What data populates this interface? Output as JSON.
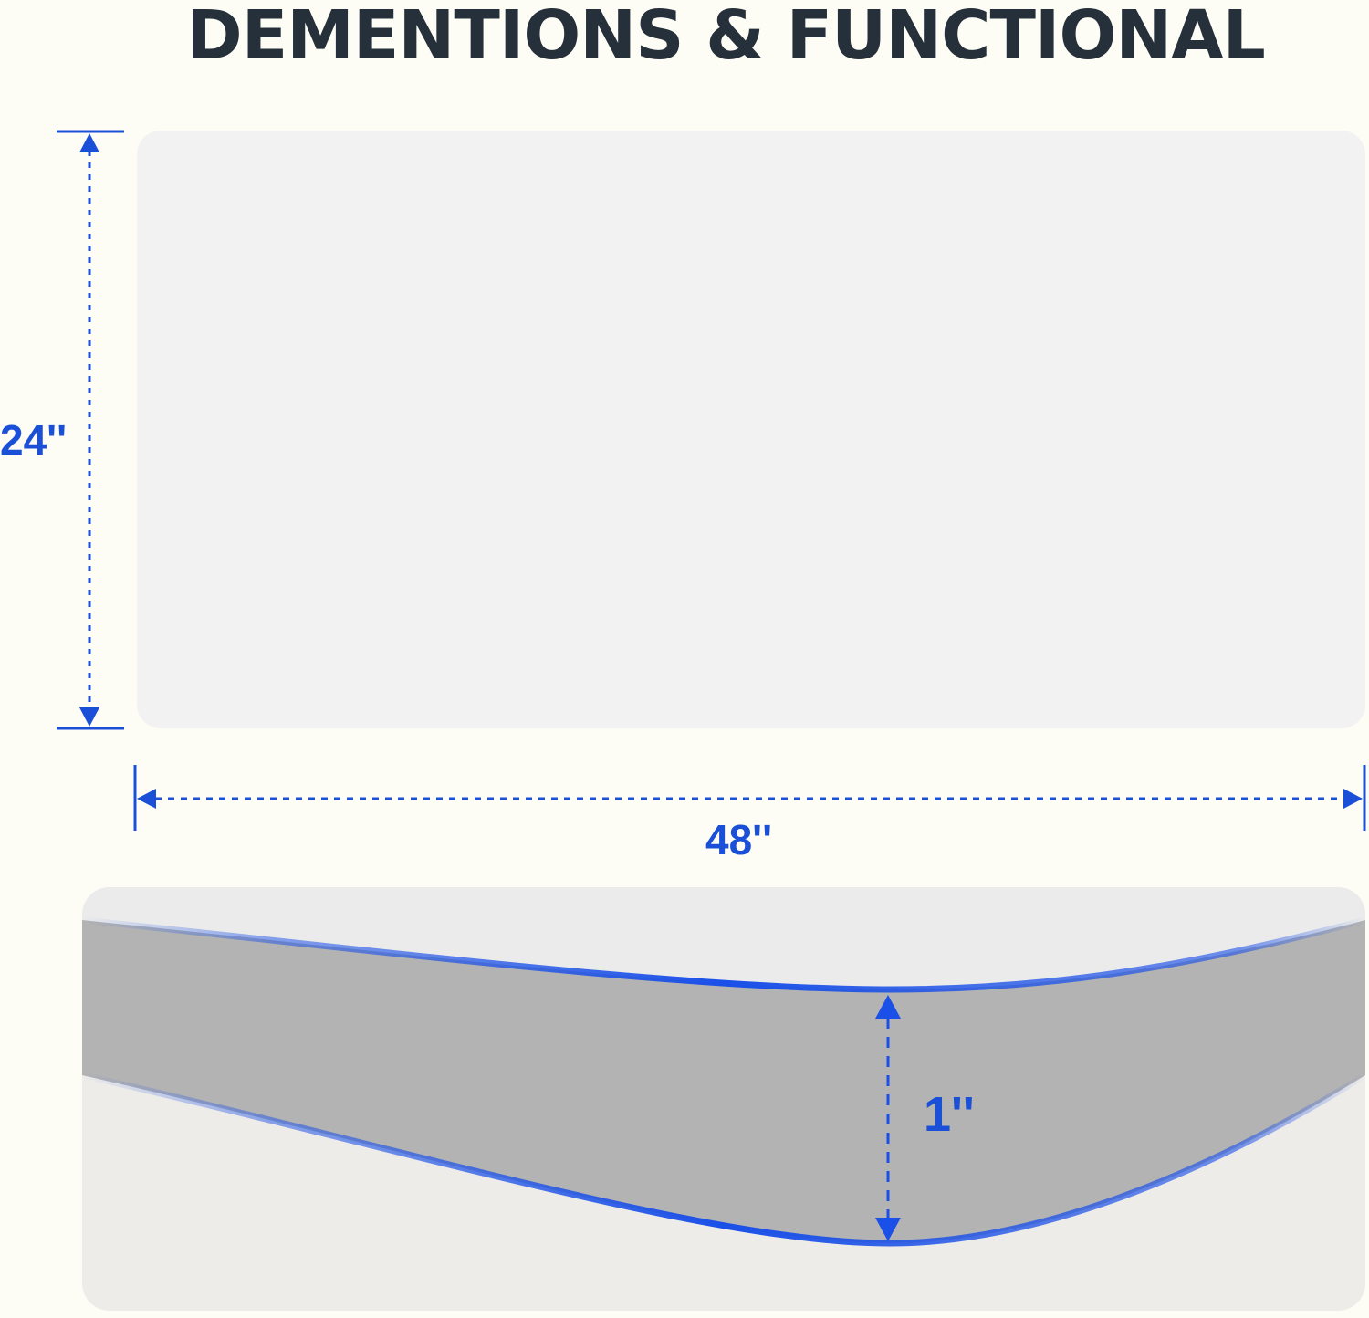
{
  "title": "DEMENTIONS & FUNCTIONAL",
  "dimensions": {
    "height_label": "24''",
    "width_label": "48''",
    "thickness_label": "1''"
  },
  "colors": {
    "accent": "#1a4fd8",
    "title": "#25303a",
    "background": "#fdfdf6",
    "panel": "#f2f2f2",
    "edge": "#b3b3b3"
  }
}
